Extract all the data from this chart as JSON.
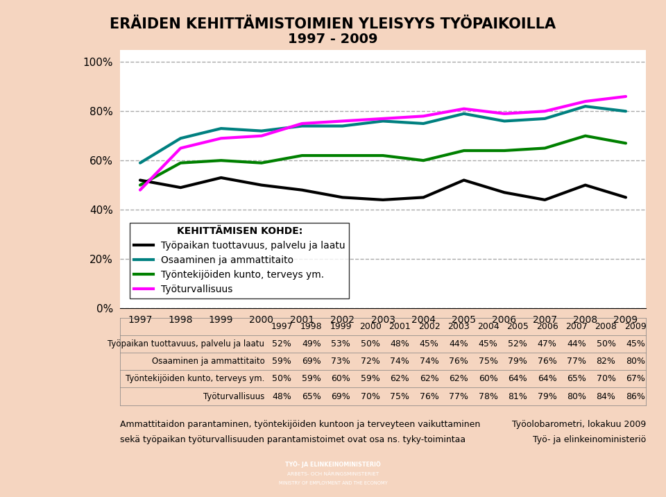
{
  "title_line1": "ERÄIDEN KEHITTÄMISTOIMIEN YLEISYYS TYÖPAIKOILLA",
  "title_line2": "1997 - 2009",
  "years": [
    1997,
    1998,
    1999,
    2000,
    2001,
    2002,
    2003,
    2004,
    2005,
    2006,
    2007,
    2008,
    2009
  ],
  "series": [
    {
      "label": "Työpaikan tuottavuus, palvelu ja laatu",
      "values": [
        52,
        49,
        53,
        50,
        48,
        45,
        44,
        45,
        52,
        47,
        44,
        50,
        45
      ],
      "color": "#000000",
      "linewidth": 3,
      "zorder": 5
    },
    {
      "label": "Osaaminen ja ammattitaito",
      "values": [
        59,
        69,
        73,
        72,
        74,
        74,
        76,
        75,
        79,
        76,
        77,
        82,
        80
      ],
      "color": "#008080",
      "linewidth": 3,
      "zorder": 4
    },
    {
      "label": "Työntekijöiden kunto, terveys ym.",
      "values": [
        50,
        59,
        60,
        59,
        62,
        62,
        62,
        60,
        64,
        64,
        65,
        70,
        67
      ],
      "color": "#008000",
      "linewidth": 3,
      "zorder": 3
    },
    {
      "label": "Työturvallisuus",
      "values": [
        48,
        65,
        69,
        70,
        75,
        76,
        77,
        78,
        81,
        79,
        80,
        84,
        86
      ],
      "color": "#FF00FF",
      "linewidth": 3,
      "zorder": 6
    }
  ],
  "legend_title": "KEHITTÄMISEN KOHDE:",
  "yticks": [
    0,
    20,
    40,
    60,
    80,
    100
  ],
  "ytick_labels": [
    "0%",
    "20%",
    "40%",
    "60%",
    "80%",
    "100%"
  ],
  "ylim": [
    0,
    105
  ],
  "background_color": "#F5D5C0",
  "plot_bg_color": "#FFFFFF",
  "grid_color": "#AAAAAA",
  "table_rows": [
    [
      "Työpaikan tuottavuus, palvelu ja laatu",
      "52%",
      "49%",
      "53%",
      "50%",
      "48%",
      "45%",
      "44%",
      "45%",
      "52%",
      "47%",
      "44%",
      "50%",
      "45%"
    ],
    [
      "Osaaminen ja ammattitaito",
      "59%",
      "69%",
      "73%",
      "72%",
      "74%",
      "74%",
      "76%",
      "75%",
      "79%",
      "76%",
      "77%",
      "82%",
      "80%"
    ],
    [
      "Työntekijöiden kunto, terveys ym.",
      "50%",
      "59%",
      "60%",
      "59%",
      "62%",
      "62%",
      "62%",
      "60%",
      "64%",
      "64%",
      "65%",
      "70%",
      "67%"
    ],
    [
      "Työturvallisuus",
      "48%",
      "65%",
      "69%",
      "70%",
      "75%",
      "76%",
      "77%",
      "78%",
      "81%",
      "79%",
      "80%",
      "84%",
      "86%"
    ]
  ],
  "footer_left_line1": "Ammattitaidon parantaminen, työntekijöiden kuntoon ja terveyteen vaikuttaminen",
  "footer_left_line2": "sekä työpaikan työturvallisuuden parantamistoimet ovat osa ns. tyky-toimintaa",
  "footer_right_line1": "Työolobarometri, lokakuu 2009",
  "footer_right_line2": "Työ- ja elinkeinoministeriö",
  "logo_line1": "TYÖ- JA ELINKEINOMINISTERIÖ",
  "logo_line2": "ARBETS- OCH NÄRINGSMINISTERIET",
  "logo_line3": "MINISTRY OF EMPLOYMENT AND THE ECONOMY",
  "logo_color": "#003399"
}
